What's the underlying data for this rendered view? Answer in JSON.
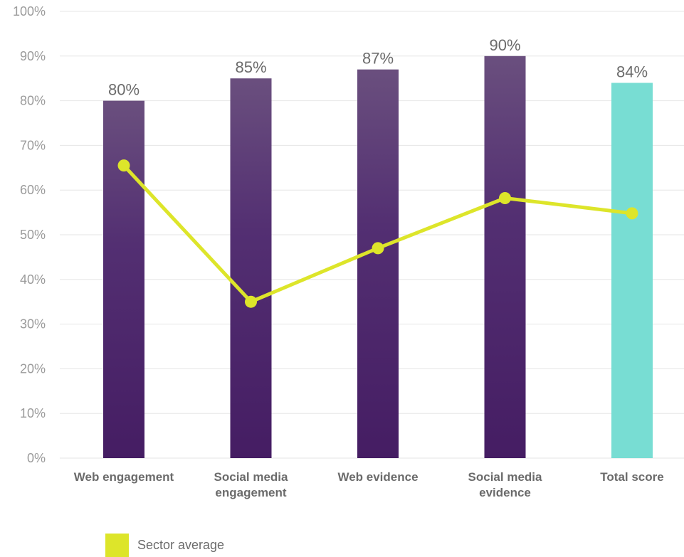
{
  "chart_data": {
    "type": "bar",
    "categories": [
      [
        "Web engagement"
      ],
      [
        "Social media",
        "engagement"
      ],
      [
        "Web evidence"
      ],
      [
        "Social media",
        "evidence"
      ],
      [
        "Total score"
      ]
    ],
    "series": [
      {
        "kind": "bar",
        "values": [
          80,
          85,
          87,
          90,
          84
        ],
        "data_labels": [
          "80%",
          "85%",
          "87%",
          "90%",
          "84%"
        ],
        "colors": [
          "#6a4f7e",
          "#6a4f7e",
          "#6a4f7e",
          "#6a4f7e",
          "#78ddd3"
        ],
        "gradient_bottom": "#451d63",
        "highlight_index": 4
      },
      {
        "name": "Sector average",
        "kind": "line",
        "values": [
          65.5,
          35,
          47,
          58.2,
          54.8
        ],
        "color": "#dde52a"
      }
    ],
    "ylim": [
      0,
      100
    ],
    "yticks": [
      "0%",
      "10%",
      "20%",
      "30%",
      "40%",
      "50%",
      "60%",
      "70%",
      "80%",
      "90%",
      "100%"
    ],
    "grid": true,
    "legend_position": "bottom-left"
  }
}
